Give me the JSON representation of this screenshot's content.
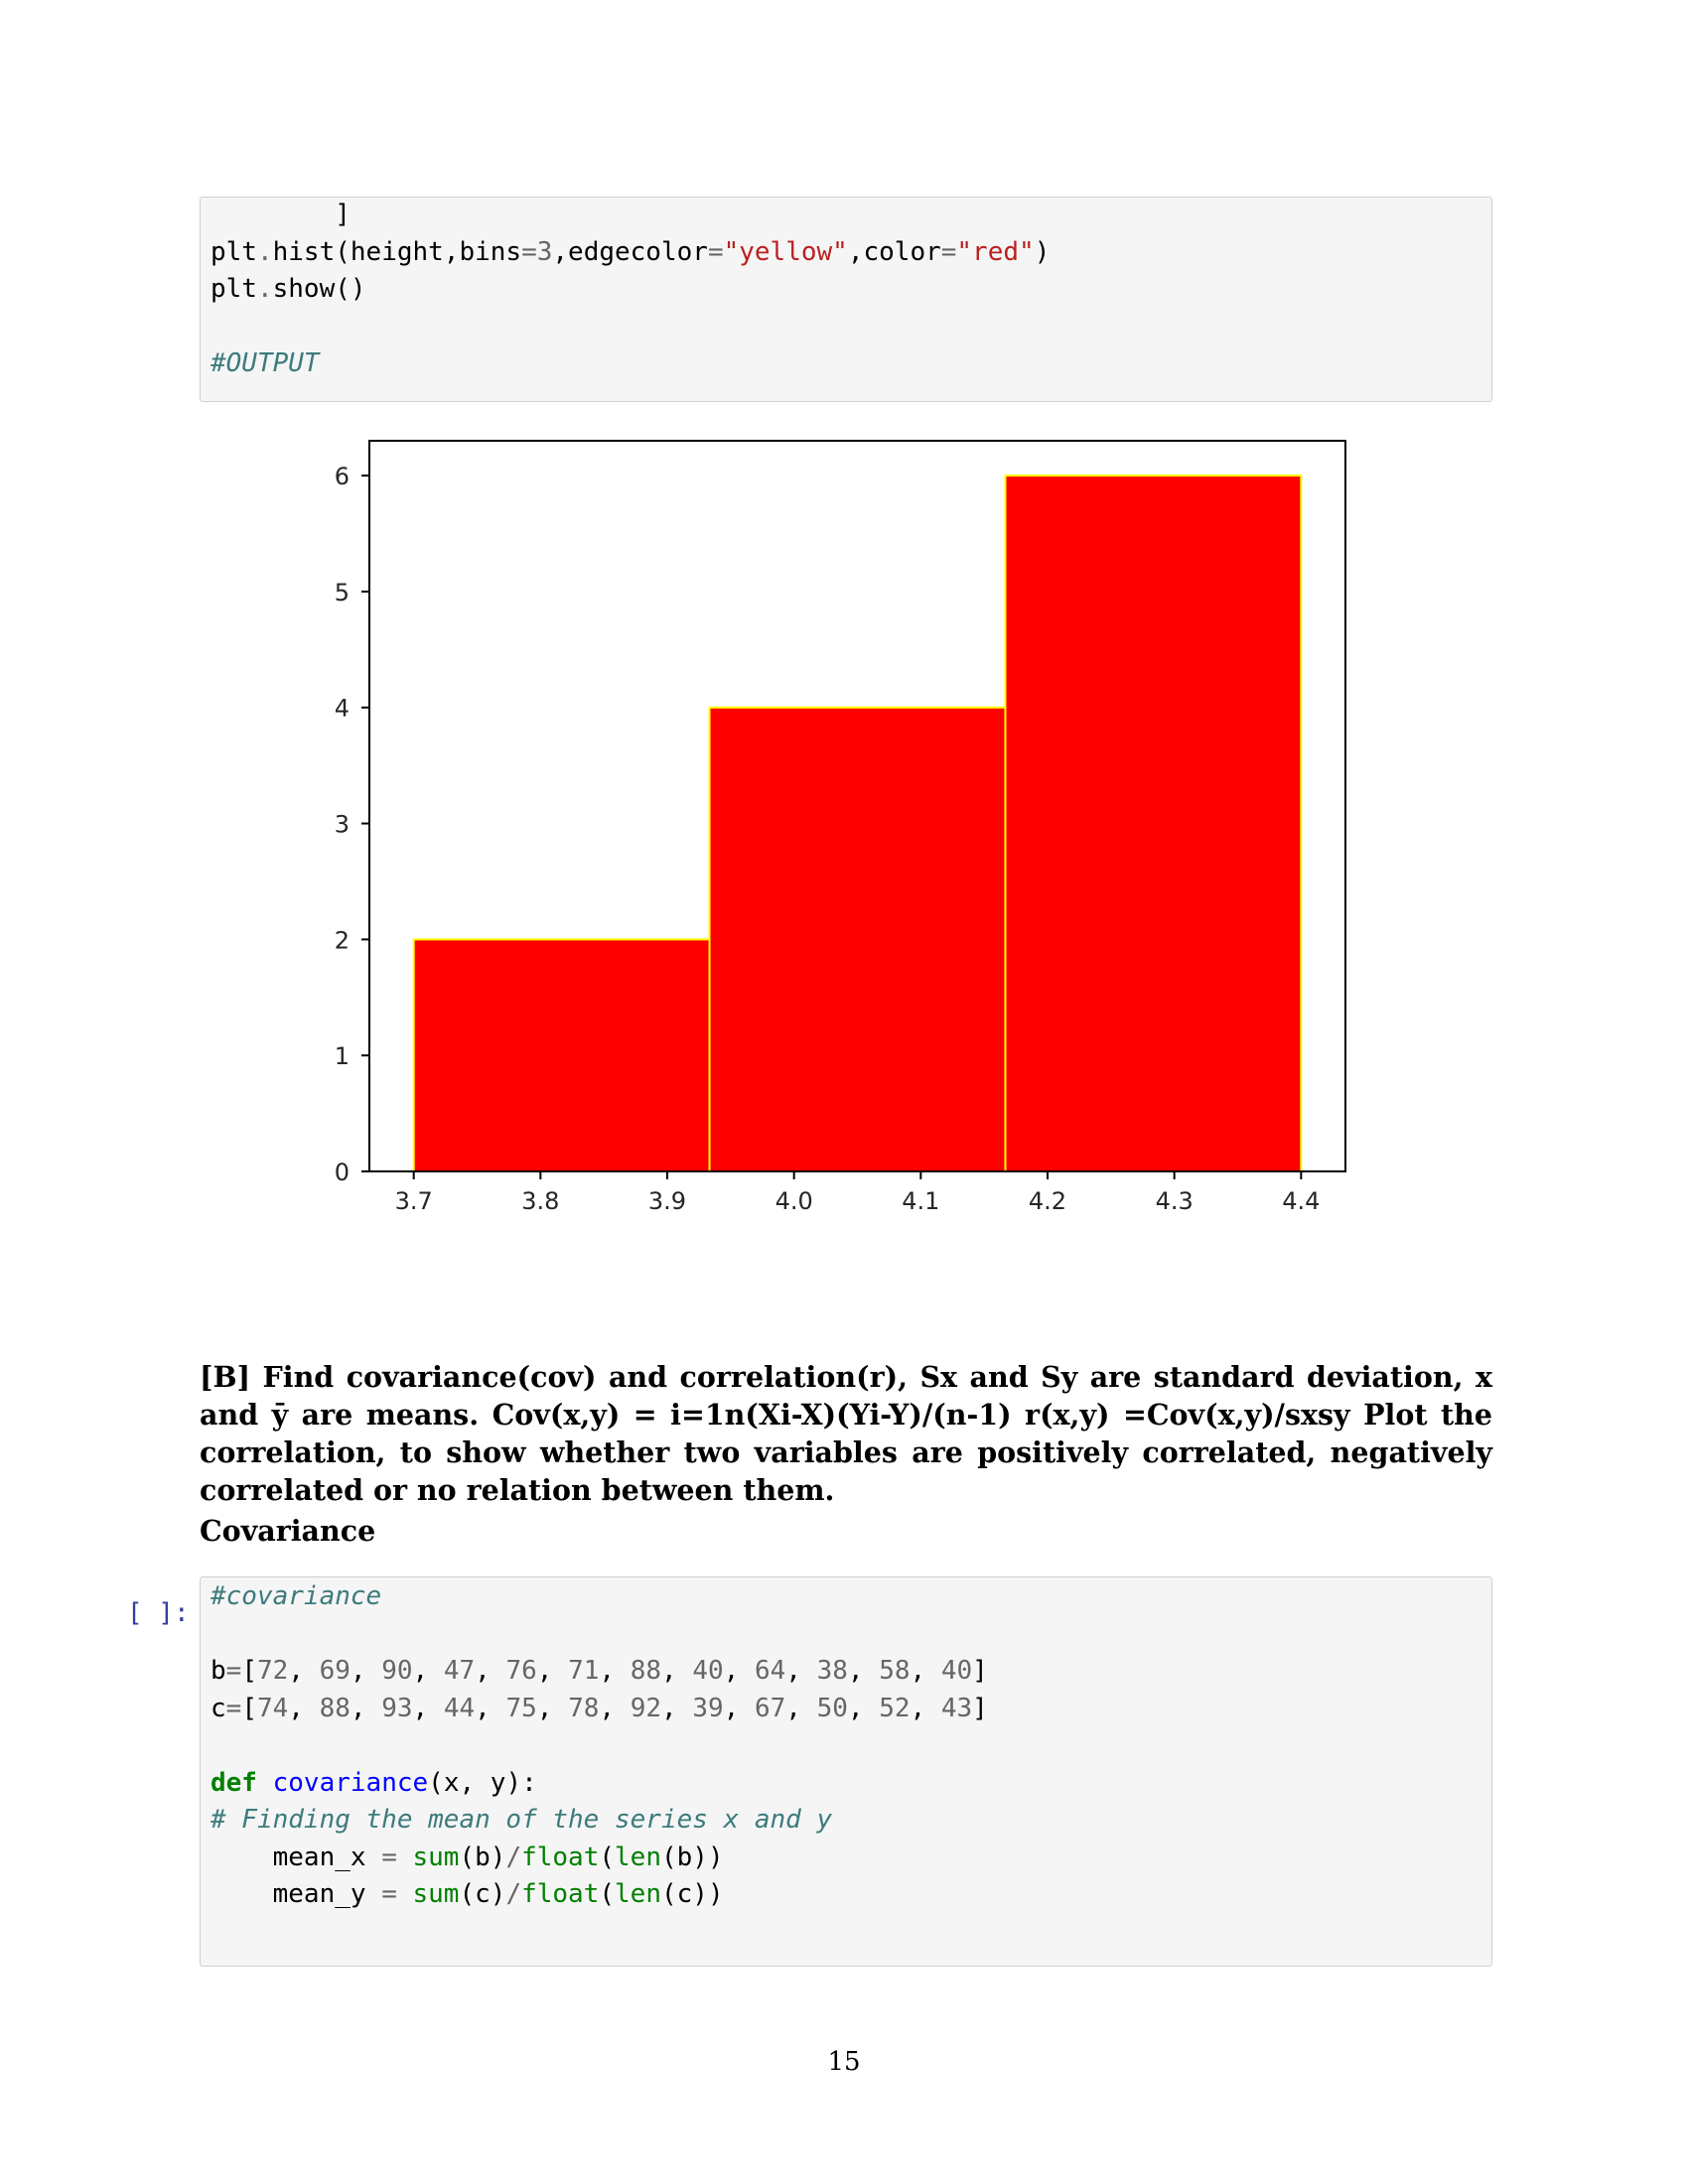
{
  "code_cell_1": {
    "lines": [
      [
        {
          "t": "        ]",
          "c": ""
        }
      ],
      [
        {
          "t": "plt",
          "c": ""
        },
        {
          "t": ".",
          "c": "tok-op"
        },
        {
          "t": "hist(height,bins",
          "c": ""
        },
        {
          "t": "=",
          "c": "tok-op"
        },
        {
          "t": "3",
          "c": "tok-num"
        },
        {
          "t": ",edgecolor",
          "c": ""
        },
        {
          "t": "=",
          "c": "tok-op"
        },
        {
          "t": "\"yellow\"",
          "c": "tok-str"
        },
        {
          "t": ",color",
          "c": ""
        },
        {
          "t": "=",
          "c": "tok-op"
        },
        {
          "t": "\"red\"",
          "c": "tok-str"
        },
        {
          "t": ")",
          "c": ""
        }
      ],
      [
        {
          "t": "plt",
          "c": ""
        },
        {
          "t": ".",
          "c": "tok-op"
        },
        {
          "t": "show()",
          "c": ""
        }
      ],
      [
        {
          "t": "",
          "c": ""
        }
      ],
      [
        {
          "t": "#OUTPUT",
          "c": "tok-comment"
        }
      ]
    ]
  },
  "chart_data": {
    "type": "bar",
    "histogram": true,
    "bins": [
      {
        "start": 3.7,
        "end": 3.9333,
        "count": 2
      },
      {
        "start": 3.9333,
        "end": 4.1667,
        "count": 4
      },
      {
        "start": 4.1667,
        "end": 4.4,
        "count": 6
      }
    ],
    "bar_color": "#ff0000",
    "edge_color": "#ffff00",
    "xlim": [
      3.665,
      4.435
    ],
    "ylim": [
      0,
      6.3
    ],
    "xticks": [
      "3.7",
      "3.8",
      "3.9",
      "4.0",
      "4.1",
      "4.2",
      "4.3",
      "4.4"
    ],
    "xtick_values": [
      3.7,
      3.8,
      3.9,
      4.0,
      4.1,
      4.2,
      4.3,
      4.4
    ],
    "yticks": [
      "0",
      "1",
      "2",
      "3",
      "4",
      "5",
      "6"
    ],
    "ytick_values": [
      0,
      1,
      2,
      3,
      4,
      5,
      6
    ],
    "title": "",
    "xlabel": "",
    "ylabel": ""
  },
  "section_b": {
    "text": "[B] Find covariance(cov) and correlation(r), Sx and Sy are standard deviation, x and ȳ are means. Cov(x,y) = i=1n(Xi-X)(Yi-Y)/(n-1) r(x,y) =Cov(x,y)/sxsy Plot the correlation, to show whether two variables are positively correlated, negatively correlated or no relation between them."
  },
  "covariance_heading": "Covariance",
  "prompt_label": "[ ]:",
  "code_cell_2": {
    "lines": [
      [
        {
          "t": "#covariance",
          "c": "tok-comment"
        }
      ],
      [
        {
          "t": "",
          "c": ""
        }
      ],
      [
        {
          "t": "b",
          "c": ""
        },
        {
          "t": "=",
          "c": "tok-op"
        },
        {
          "t": "[",
          "c": ""
        },
        {
          "t": "72",
          "c": "tok-num"
        },
        {
          "t": ", ",
          "c": ""
        },
        {
          "t": "69",
          "c": "tok-num"
        },
        {
          "t": ", ",
          "c": ""
        },
        {
          "t": "90",
          "c": "tok-num"
        },
        {
          "t": ", ",
          "c": ""
        },
        {
          "t": "47",
          "c": "tok-num"
        },
        {
          "t": ", ",
          "c": ""
        },
        {
          "t": "76",
          "c": "tok-num"
        },
        {
          "t": ", ",
          "c": ""
        },
        {
          "t": "71",
          "c": "tok-num"
        },
        {
          "t": ", ",
          "c": ""
        },
        {
          "t": "88",
          "c": "tok-num"
        },
        {
          "t": ", ",
          "c": ""
        },
        {
          "t": "40",
          "c": "tok-num"
        },
        {
          "t": ", ",
          "c": ""
        },
        {
          "t": "64",
          "c": "tok-num"
        },
        {
          "t": ", ",
          "c": ""
        },
        {
          "t": "38",
          "c": "tok-num"
        },
        {
          "t": ", ",
          "c": ""
        },
        {
          "t": "58",
          "c": "tok-num"
        },
        {
          "t": ", ",
          "c": ""
        },
        {
          "t": "40",
          "c": "tok-num"
        },
        {
          "t": "]",
          "c": ""
        }
      ],
      [
        {
          "t": "c",
          "c": ""
        },
        {
          "t": "=",
          "c": "tok-op"
        },
        {
          "t": "[",
          "c": ""
        },
        {
          "t": "74",
          "c": "tok-num"
        },
        {
          "t": ", ",
          "c": ""
        },
        {
          "t": "88",
          "c": "tok-num"
        },
        {
          "t": ", ",
          "c": ""
        },
        {
          "t": "93",
          "c": "tok-num"
        },
        {
          "t": ", ",
          "c": ""
        },
        {
          "t": "44",
          "c": "tok-num"
        },
        {
          "t": ", ",
          "c": ""
        },
        {
          "t": "75",
          "c": "tok-num"
        },
        {
          "t": ", ",
          "c": ""
        },
        {
          "t": "78",
          "c": "tok-num"
        },
        {
          "t": ", ",
          "c": ""
        },
        {
          "t": "92",
          "c": "tok-num"
        },
        {
          "t": ", ",
          "c": ""
        },
        {
          "t": "39",
          "c": "tok-num"
        },
        {
          "t": ", ",
          "c": ""
        },
        {
          "t": "67",
          "c": "tok-num"
        },
        {
          "t": ", ",
          "c": ""
        },
        {
          "t": "50",
          "c": "tok-num"
        },
        {
          "t": ", ",
          "c": ""
        },
        {
          "t": "52",
          "c": "tok-num"
        },
        {
          "t": ", ",
          "c": ""
        },
        {
          "t": "43",
          "c": "tok-num"
        },
        {
          "t": "]",
          "c": ""
        }
      ],
      [
        {
          "t": "",
          "c": ""
        }
      ],
      [
        {
          "t": "def",
          "c": "tok-kw"
        },
        {
          "t": " ",
          "c": ""
        },
        {
          "t": "covariance",
          "c": "tok-fn"
        },
        {
          "t": "(x, y):",
          "c": ""
        }
      ],
      [
        {
          "t": "# Finding the mean of the series x and y",
          "c": "tok-comment"
        }
      ],
      [
        {
          "t": "    mean_x ",
          "c": ""
        },
        {
          "t": "=",
          "c": "tok-op"
        },
        {
          "t": " ",
          "c": ""
        },
        {
          "t": "sum",
          "c": "tok-builtin"
        },
        {
          "t": "(b)",
          "c": ""
        },
        {
          "t": "/",
          "c": "tok-op"
        },
        {
          "t": "float",
          "c": "tok-builtin"
        },
        {
          "t": "(",
          "c": ""
        },
        {
          "t": "len",
          "c": "tok-builtin"
        },
        {
          "t": "(b))",
          "c": ""
        }
      ],
      [
        {
          "t": "    mean_y ",
          "c": ""
        },
        {
          "t": "=",
          "c": "tok-op"
        },
        {
          "t": " ",
          "c": ""
        },
        {
          "t": "sum",
          "c": "tok-builtin"
        },
        {
          "t": "(c)",
          "c": ""
        },
        {
          "t": "/",
          "c": "tok-op"
        },
        {
          "t": "float",
          "c": "tok-builtin"
        },
        {
          "t": "(",
          "c": ""
        },
        {
          "t": "len",
          "c": "tok-builtin"
        },
        {
          "t": "(c))",
          "c": ""
        }
      ]
    ]
  },
  "page_number": "15"
}
